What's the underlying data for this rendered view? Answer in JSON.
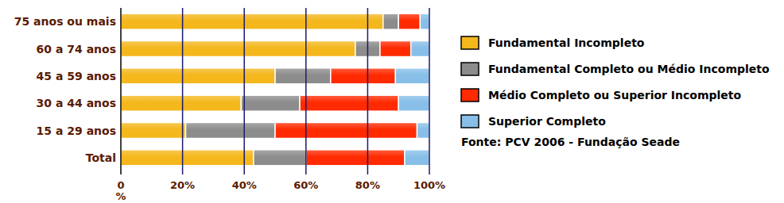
{
  "chart_data": {
    "type": "bar",
    "orientation": "horizontal",
    "stacked": true,
    "grid": true,
    "legend": "right",
    "categories": [
      "75 anos ou mais",
      "60 a 74 anos",
      "45 a 59 anos",
      "30 a 44 anos",
      "15 a 29 anos",
      "Total"
    ],
    "series": [
      {
        "name": "Fundamental Incompleto",
        "color": "#f4b71c",
        "values": [
          85,
          76,
          50,
          39,
          21,
          43
        ]
      },
      {
        "name": "Fundamental Completo ou Médio Incompleto",
        "color": "#8c8c8c",
        "values": [
          5,
          8,
          18,
          19,
          29,
          17
        ]
      },
      {
        "name": "Médio Completo ou Superior Incompleto",
        "color": "#ff2a00",
        "values": [
          7,
          10,
          21,
          32,
          46,
          32
        ]
      },
      {
        "name": "Superior Completo",
        "color": "#87bfe8",
        "values": [
          3,
          6,
          11,
          10,
          4,
          8
        ]
      }
    ],
    "xlim": [
      0,
      100
    ],
    "xticks": [
      0,
      {
        "value": 20,
        "label": "20%"
      },
      {
        "value": 40,
        "label": "40%"
      },
      {
        "value": 60,
        "label": "60%"
      },
      {
        "value": 80,
        "label": "80%"
      },
      {
        "value": 100,
        "label": "100%"
      }
    ],
    "xlabel": "%",
    "source": "Fonte: PCV 2006 - Fundação Seade"
  }
}
